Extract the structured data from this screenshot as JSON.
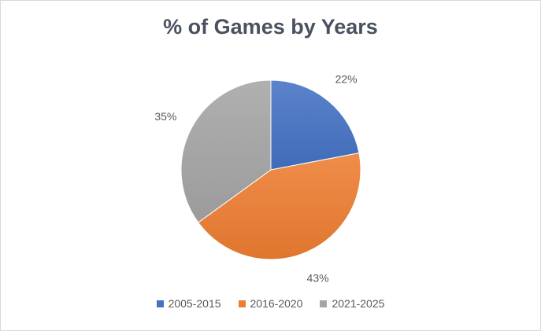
{
  "chart_data": {
    "type": "pie",
    "title": "% of Games by Years",
    "categories": [
      "2005-2015",
      "2016-2020",
      "2021-2025"
    ],
    "values": [
      22,
      43,
      35
    ],
    "labels": [
      "22%",
      "43%",
      "35%"
    ],
    "colors": [
      "#4472c4",
      "#ed7d31",
      "#a5a5a5"
    ],
    "legend_position": "bottom",
    "start_angle": "12 o'clock, clockwise"
  }
}
